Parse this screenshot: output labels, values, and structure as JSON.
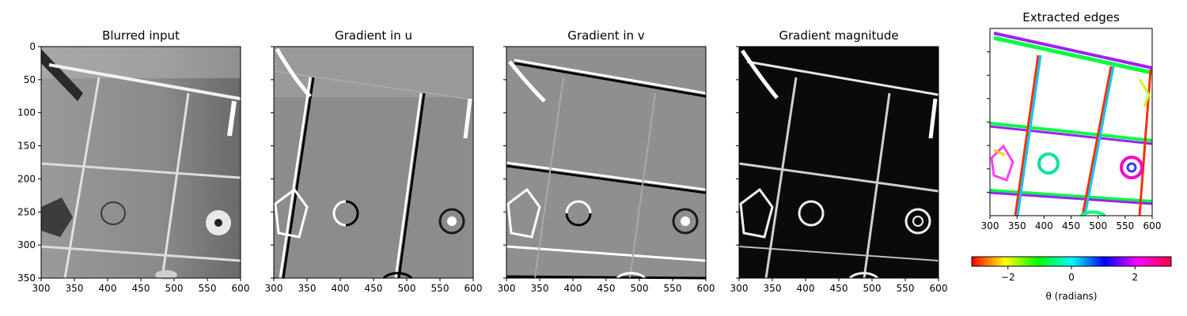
{
  "chart_data": [
    {
      "type": "image",
      "title": "Blurred input",
      "xlim": [
        300,
        600
      ],
      "ylim": [
        350,
        0
      ],
      "xticks": [
        300,
        350,
        400,
        450,
        500,
        550,
        600
      ],
      "yticks": [
        0,
        50,
        100,
        150,
        200,
        250,
        300,
        350
      ],
      "colormap": "gray"
    },
    {
      "type": "image",
      "title": "Gradient in u",
      "xlim": [
        300,
        600
      ],
      "ylim": [
        350,
        0
      ],
      "xticks": [
        300,
        350,
        400,
        450,
        500,
        550,
        600
      ],
      "yticks": [
        0,
        50,
        100,
        150,
        200,
        250,
        300,
        350
      ],
      "colormap": "gray"
    },
    {
      "type": "image",
      "title": "Gradient in v",
      "xlim": [
        300,
        600
      ],
      "ylim": [
        350,
        0
      ],
      "xticks": [
        300,
        350,
        400,
        450,
        500,
        550,
        600
      ],
      "yticks": [
        0,
        50,
        100,
        150,
        200,
        250,
        300,
        350
      ],
      "colormap": "gray"
    },
    {
      "type": "image",
      "title": "Gradient magnitude",
      "xlim": [
        300,
        600
      ],
      "ylim": [
        350,
        0
      ],
      "xticks": [
        300,
        350,
        400,
        450,
        500,
        550,
        600
      ],
      "yticks": [
        0,
        50,
        100,
        150,
        200,
        250,
        300,
        350
      ],
      "colormap": "gray"
    },
    {
      "type": "image",
      "title": "Extracted edges",
      "xlim": [
        300,
        600
      ],
      "xticks": [
        300,
        350,
        400,
        450,
        500,
        550,
        600
      ],
      "colormap": "hsv",
      "colorbar": {
        "label": "θ (radians)",
        "range": [
          -3.14,
          3.14
        ],
        "ticks": [
          -2,
          0,
          2
        ],
        "tick_labels": [
          "−2",
          "0",
          "2"
        ],
        "orientation": "horizontal"
      }
    }
  ]
}
